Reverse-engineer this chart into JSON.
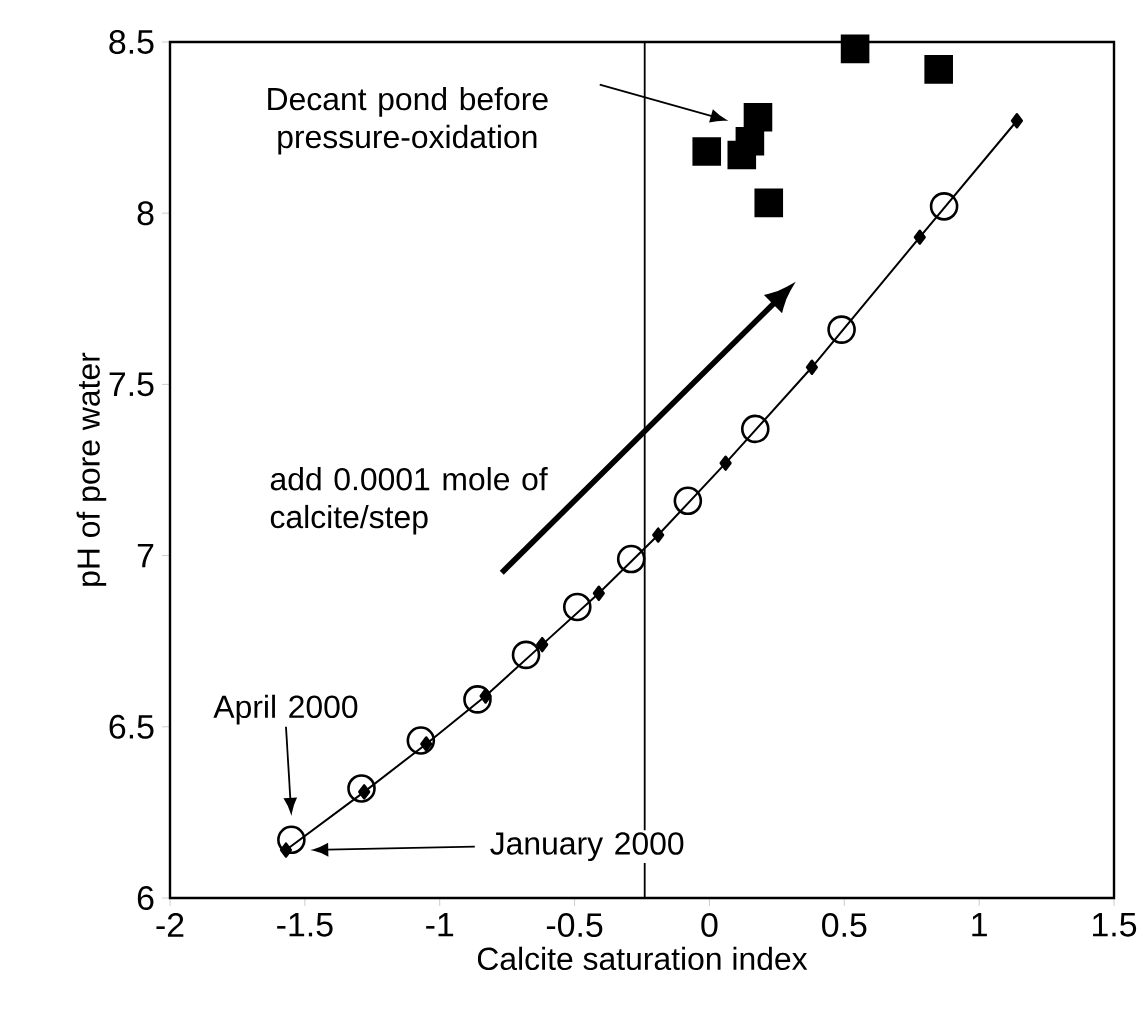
{
  "chart_data": {
    "type": "scatter",
    "xlabel": "Calcite saturation index",
    "ylabel": "pH of pore water",
    "xlim": [
      -2,
      1.5
    ],
    "ylim": [
      6,
      8.5
    ],
    "xticks": [
      -2,
      -1.5,
      -1,
      -0.5,
      0,
      0.5,
      1,
      1.5
    ],
    "yticks": [
      6,
      6.5,
      7,
      7.5,
      8,
      8.5
    ],
    "series": [
      {
        "type": "line",
        "marker": "diamond",
        "color": "#000000",
        "x": [
          -1.57,
          -1.28,
          -1.05,
          -0.83,
          -0.62,
          -0.41,
          -0.19,
          0.06,
          0.38,
          0.78,
          1.14
        ],
        "values": [
          6.14,
          6.31,
          6.45,
          6.59,
          6.74,
          6.89,
          7.06,
          7.27,
          7.55,
          7.93,
          8.27
        ]
      },
      {
        "marker": "circle",
        "color": "#000000",
        "x": [
          -1.55,
          -1.29,
          -1.07,
          -0.86,
          -0.68,
          -0.49,
          -0.29,
          -0.08,
          0.17,
          0.49,
          0.87
        ],
        "values": [
          6.17,
          6.32,
          6.46,
          6.58,
          6.71,
          6.85,
          6.99,
          7.16,
          7.37,
          7.66,
          8.02
        ]
      },
      {
        "marker": "square",
        "color": "#000000",
        "x": [
          0.54,
          0.85,
          0.18,
          -0.01,
          0.12,
          0.15,
          0.22
        ],
        "values": [
          8.48,
          8.42,
          8.28,
          8.18,
          8.17,
          8.21,
          8.03
        ]
      }
    ],
    "ref_lines": [
      {
        "axis": "x",
        "value": -0.24,
        "color": "#000000"
      }
    ],
    "annotations": [
      "Decant pond before pressure-oxidation",
      "add 0.0001 mole of calcite/step",
      "April 2000",
      "January 2000"
    ]
  }
}
